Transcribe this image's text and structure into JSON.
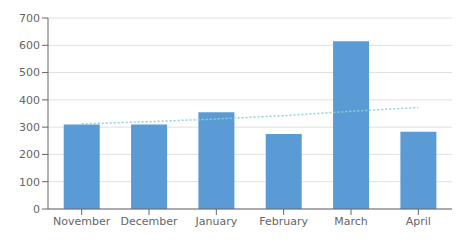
{
  "chart_data": {
    "type": "bar",
    "categories": [
      "November",
      "December",
      "January",
      "February",
      "March",
      "April"
    ],
    "series": [
      {
        "type": "bar",
        "color": "#5b9bd5",
        "values": [
          310,
          310,
          355,
          275,
          615,
          283
        ]
      },
      {
        "type": "line",
        "color": "#92d0d3",
        "line_style": "dotted",
        "values": [
          312,
          320,
          330,
          342,
          358,
          372
        ]
      }
    ],
    "ylim": [
      0,
      700
    ],
    "yticks": [
      0,
      100,
      200,
      300,
      400,
      500,
      600,
      700
    ],
    "grid": true
  }
}
